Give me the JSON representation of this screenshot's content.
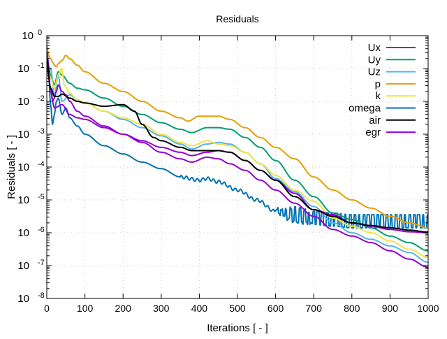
{
  "chart_data": {
    "type": "line",
    "title": "Residuals",
    "xlabel": "Iterations [ - ]",
    "ylabel": "Residuals [ - ]",
    "xlim": [
      0,
      1000
    ],
    "ylim_log10": [
      -8,
      0
    ],
    "yscale": "log",
    "grid": true,
    "legend_placement": "top-right",
    "x_ticks": [
      "0",
      "100",
      "200",
      "300",
      "400",
      "500",
      "600",
      "700",
      "800",
      "900",
      "1000"
    ],
    "y_ticks": [
      {
        "base": "10",
        "exp": "0"
      },
      {
        "base": "10",
        "exp": "-1"
      },
      {
        "base": "10",
        "exp": "-2"
      },
      {
        "base": "10",
        "exp": "-3"
      },
      {
        "base": "10",
        "exp": "-4"
      },
      {
        "base": "10",
        "exp": "-5"
      },
      {
        "base": "10",
        "exp": "-6"
      },
      {
        "base": "10",
        "exp": "-7"
      },
      {
        "base": "10",
        "exp": "-8"
      }
    ],
    "series": [
      {
        "name": "Ux",
        "color": "#9400d3",
        "x": [
          0,
          10,
          20,
          40,
          60,
          80,
          100,
          150,
          200,
          250,
          300,
          350,
          380,
          420,
          450,
          480,
          520,
          560,
          600,
          650,
          700,
          750,
          800,
          850,
          900,
          950,
          1000
        ],
        "log10y": [
          -0.5,
          -1.7,
          -2.2,
          -2.1,
          -2.4,
          -2.5,
          -2.55,
          -2.8,
          -3.0,
          -3.2,
          -3.4,
          -3.55,
          -3.65,
          -3.55,
          -3.5,
          -3.55,
          -3.8,
          -4.1,
          -4.4,
          -4.8,
          -5.3,
          -5.45,
          -5.7,
          -5.8,
          -5.9,
          -5.97,
          -6.0
        ]
      },
      {
        "name": "Uy",
        "color": "#009e73",
        "x": [
          0,
          10,
          20,
          30,
          40,
          60,
          80,
          100,
          150,
          200,
          250,
          300,
          350,
          380,
          420,
          450,
          480,
          520,
          560,
          600,
          650,
          700,
          750,
          800,
          850,
          900,
          950,
          1000
        ],
        "log10y": [
          -0.6,
          -1.2,
          -1.5,
          -1.1,
          -1.2,
          -1.45,
          -1.6,
          -1.65,
          -1.9,
          -2.15,
          -2.4,
          -2.65,
          -2.85,
          -2.95,
          -2.8,
          -2.8,
          -2.85,
          -3.1,
          -3.4,
          -3.8,
          -4.4,
          -4.9,
          -5.4,
          -5.6,
          -5.85,
          -6.1,
          -6.3,
          -6.55
        ]
      },
      {
        "name": "Uz",
        "color": "#56b4e9",
        "x": [
          0,
          10,
          20,
          30,
          40,
          60,
          80,
          100,
          150,
          200,
          250,
          300,
          350,
          380,
          420,
          450,
          480,
          520,
          560,
          600,
          650,
          700,
          750,
          800,
          850,
          900,
          950,
          1000
        ],
        "log10y": [
          -0.8,
          -1.0,
          -1.8,
          -1.2,
          -2.0,
          -1.8,
          -1.95,
          -2.05,
          -2.3,
          -2.55,
          -2.8,
          -3.05,
          -3.3,
          -3.45,
          -3.3,
          -3.25,
          -3.3,
          -3.55,
          -3.9,
          -4.35,
          -4.75,
          -5.2,
          -5.7,
          -6.0,
          -6.2,
          -6.4,
          -6.6,
          -6.9
        ]
      },
      {
        "name": "p",
        "color": "#e69f00",
        "x": [
          0,
          5,
          10,
          15,
          20,
          25,
          30,
          40,
          50,
          60,
          80,
          100,
          150,
          200,
          250,
          300,
          350,
          370,
          400,
          450,
          480,
          520,
          560,
          600,
          650,
          700,
          750,
          800,
          850,
          900,
          950,
          1000
        ],
        "log10y": [
          -0.3,
          -0.6,
          -0.7,
          -0.8,
          -0.9,
          -0.95,
          -0.85,
          -0.75,
          -0.6,
          -0.7,
          -0.9,
          -1.1,
          -1.45,
          -1.7,
          -2.0,
          -2.3,
          -2.5,
          -2.6,
          -2.45,
          -2.45,
          -2.55,
          -2.8,
          -3.1,
          -3.4,
          -3.75,
          -4.3,
          -4.7,
          -5.0,
          -5.25,
          -5.5,
          -5.7,
          -5.85
        ]
      },
      {
        "name": "k",
        "color": "#f0e442",
        "x": [
          0,
          10,
          20,
          30,
          40,
          45,
          60,
          80,
          100,
          150,
          200,
          250,
          300,
          350,
          380,
          420,
          450,
          480,
          520,
          560,
          600,
          650,
          700,
          750,
          800,
          850,
          900,
          950,
          1000
        ],
        "log10y": [
          -0.8,
          -1.3,
          -1.6,
          -1.2,
          -1.0,
          -1.5,
          -1.75,
          -1.95,
          -2.05,
          -2.3,
          -2.5,
          -2.7,
          -3.0,
          -3.25,
          -3.35,
          -3.2,
          -3.3,
          -3.35,
          -3.55,
          -3.9,
          -4.25,
          -4.7,
          -5.05,
          -5.55,
          -5.8,
          -6.0,
          -6.25,
          -6.5,
          -6.75
        ]
      },
      {
        "name": "omega",
        "color": "#0072b2",
        "x": [
          0,
          5,
          10,
          15,
          20,
          25,
          30,
          40,
          50,
          60,
          80,
          100,
          150,
          200,
          250,
          300,
          350,
          400,
          420,
          450,
          500,
          550,
          600,
          650,
          700,
          750,
          800,
          850,
          900,
          950,
          1000
        ],
        "log10y": [
          -0.6,
          -1.2,
          -2.1,
          -2.7,
          -2.4,
          -2.0,
          -1.9,
          -2.4,
          -2.2,
          -2.5,
          -2.75,
          -3.0,
          -3.35,
          -3.6,
          -3.85,
          -4.05,
          -4.3,
          -4.4,
          -4.35,
          -4.45,
          -4.7,
          -5.0,
          -5.35,
          -5.45,
          -5.55,
          -5.6,
          -5.65,
          -5.65,
          -5.65,
          -5.65,
          -5.65
        ]
      },
      {
        "name": "air",
        "color": "#000000",
        "x": [
          0,
          10,
          20,
          30,
          40,
          60,
          80,
          100,
          150,
          200,
          230,
          250,
          280,
          300,
          350,
          380,
          420,
          450,
          480,
          520,
          560,
          600,
          650,
          700,
          750,
          800,
          850,
          900,
          950,
          1000
        ],
        "log10y": [
          -0.7,
          -1.6,
          -1.85,
          -1.85,
          -1.78,
          -1.9,
          -2.0,
          -2.05,
          -2.15,
          -2.1,
          -2.3,
          -2.7,
          -3.1,
          -3.2,
          -3.4,
          -3.5,
          -3.5,
          -3.5,
          -3.55,
          -3.8,
          -4.1,
          -4.4,
          -4.9,
          -5.3,
          -5.5,
          -5.7,
          -5.78,
          -5.85,
          -5.92,
          -5.98
        ]
      },
      {
        "name": "egr",
        "color": "#9400d3",
        "x": [
          0,
          10,
          15,
          20,
          25,
          30,
          40,
          50,
          60,
          80,
          100,
          150,
          200,
          250,
          300,
          350,
          380,
          420,
          450,
          480,
          520,
          560,
          600,
          650,
          700,
          750,
          800,
          850,
          900,
          950,
          1000
        ],
        "log10y": [
          -0.9,
          -1.6,
          -2.0,
          -1.9,
          -1.7,
          -1.5,
          -1.7,
          -1.8,
          -2.0,
          -2.3,
          -2.45,
          -2.75,
          -3.0,
          -3.25,
          -3.55,
          -3.75,
          -3.85,
          -3.7,
          -3.75,
          -3.9,
          -4.1,
          -4.4,
          -4.7,
          -5.1,
          -5.5,
          -5.9,
          -6.1,
          -6.3,
          -6.55,
          -6.8,
          -7.05
        ]
      }
    ]
  }
}
